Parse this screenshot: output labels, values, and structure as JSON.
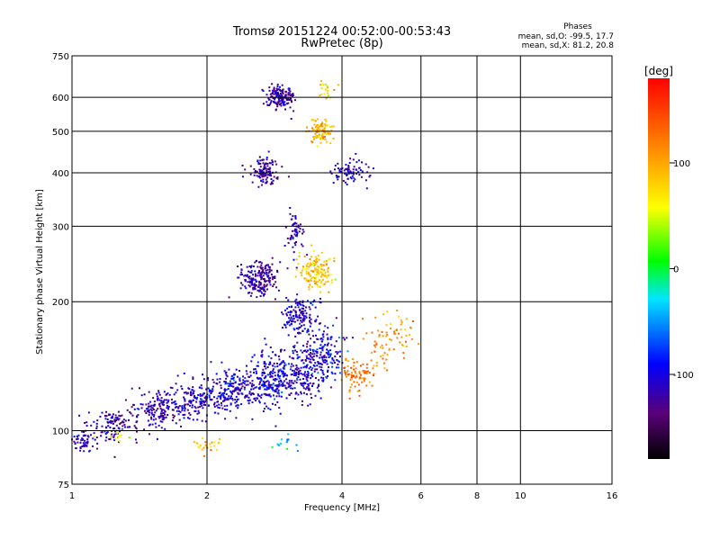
{
  "title": "Tromsø 20151224 00:52:00-00:53:43",
  "subtitle": "RwPretec (8p)",
  "stats": {
    "heading": "Phases",
    "line_o": "mean, sd,O: -99.5, 17.7",
    "line_x": "mean, sd,X: 81.2, 20.8"
  },
  "colorbar": {
    "unit": "[deg]",
    "ticks": [
      "100",
      "0",
      "-100"
    ],
    "tick_values": [
      100,
      0,
      -100
    ],
    "range": [
      -180,
      180
    ]
  },
  "chart_data": {
    "type": "scatter",
    "title": "Tromsø 20151224 00:52:00-00:53:43",
    "subtitle": "RwPretec (8p)",
    "xlabel": "Frequency [MHz]",
    "ylabel": "Stationary phase Virtual Height [km]",
    "x_scale": "log",
    "y_scale": "log",
    "xlim": [
      1,
      16
    ],
    "ylim": [
      75,
      750
    ],
    "x_ticks": [
      "1",
      "2",
      "4",
      "6",
      "8",
      "10",
      "16"
    ],
    "x_tick_values": [
      1,
      2,
      4,
      6,
      8,
      10,
      16
    ],
    "y_ticks": [
      "75",
      "100",
      "200",
      "300",
      "400",
      "500",
      "600",
      "750"
    ],
    "y_tick_values": [
      75,
      100,
      200,
      300,
      400,
      500,
      600,
      750
    ],
    "grid": true,
    "color_by": "phase [deg]",
    "clusters": [
      {
        "f": 1.06,
        "h": 95,
        "n": 70,
        "phase": -110,
        "sf": 0.04,
        "sh": 0.04
      },
      {
        "f": 1.25,
        "h": 103,
        "n": 110,
        "phase": -115,
        "sf": 0.06,
        "sh": 0.04
      },
      {
        "f": 1.55,
        "h": 112,
        "n": 150,
        "phase": -118,
        "sf": 0.07,
        "sh": 0.05
      },
      {
        "f": 1.9,
        "h": 118,
        "n": 170,
        "phase": -110,
        "sf": 0.07,
        "sh": 0.05
      },
      {
        "f": 2.3,
        "h": 125,
        "n": 200,
        "phase": -105,
        "sf": 0.06,
        "sh": 0.06
      },
      {
        "f": 2.8,
        "h": 132,
        "n": 230,
        "phase": -100,
        "sf": 0.05,
        "sh": 0.08
      },
      {
        "f": 3.3,
        "h": 140,
        "n": 200,
        "phase": -108,
        "sf": 0.05,
        "sh": 0.09
      },
      {
        "f": 3.7,
        "h": 150,
        "n": 130,
        "phase": -95,
        "sf": 0.04,
        "sh": 0.08
      },
      {
        "f": 4.3,
        "h": 135,
        "n": 80,
        "phase": 125,
        "sf": 0.04,
        "sh": 0.04
      },
      {
        "f": 4.9,
        "h": 155,
        "n": 50,
        "phase": 110,
        "sf": 0.05,
        "sh": 0.07
      },
      {
        "f": 5.5,
        "h": 172,
        "n": 30,
        "phase": 100,
        "sf": 0.04,
        "sh": 0.05
      },
      {
        "f": 3.2,
        "h": 185,
        "n": 140,
        "phase": -110,
        "sf": 0.05,
        "sh": 0.05
      },
      {
        "f": 2.6,
        "h": 225,
        "n": 200,
        "phase": -122,
        "sf": 0.05,
        "sh": 0.05
      },
      {
        "f": 3.5,
        "h": 235,
        "n": 150,
        "phase": 85,
        "sf": 0.04,
        "sh": 0.05
      },
      {
        "f": 3.15,
        "h": 290,
        "n": 60,
        "phase": -120,
        "sf": 0.02,
        "sh": 0.06
      },
      {
        "f": 2.7,
        "h": 405,
        "n": 120,
        "phase": -125,
        "sf": 0.035,
        "sh": 0.035
      },
      {
        "f": 4.2,
        "h": 405,
        "n": 80,
        "phase": -110,
        "sf": 0.05,
        "sh": 0.04
      },
      {
        "f": 2.9,
        "h": 600,
        "n": 160,
        "phase": -122,
        "sf": 0.035,
        "sh": 0.03
      },
      {
        "f": 3.6,
        "h": 500,
        "n": 110,
        "phase": 95,
        "sf": 0.03,
        "sh": 0.03
      },
      {
        "f": 3.7,
        "h": 620,
        "n": 20,
        "phase": 80,
        "sf": 0.02,
        "sh": 0.03
      },
      {
        "f": 2.0,
        "h": 92,
        "n": 25,
        "phase": 95,
        "sf": 0.04,
        "sh": 0.02
      },
      {
        "f": 1.25,
        "h": 98,
        "n": 12,
        "phase": 60,
        "sf": 0.04,
        "sh": 0.03
      },
      {
        "f": 3.0,
        "h": 93,
        "n": 15,
        "phase": -40,
        "sf": 0.04,
        "sh": 0.03
      }
    ]
  }
}
